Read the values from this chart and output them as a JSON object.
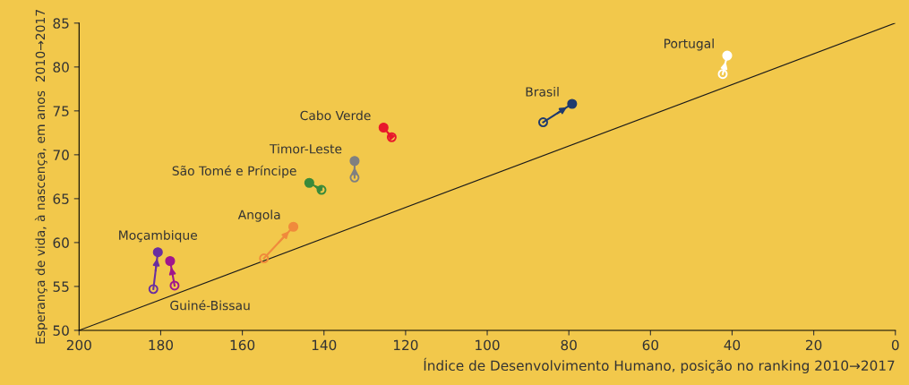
{
  "chart_data": {
    "type": "line",
    "xlabel": "Índice de Desenvolvimento Humano, posição no ranking 2010→2017",
    "ylabel": "Esperança de vida, à nascença, em anos  2010→2017",
    "xlim": [
      200,
      0
    ],
    "xticks": [
      200,
      180,
      160,
      140,
      120,
      100,
      80,
      60,
      40,
      20,
      0
    ],
    "ylim": [
      50,
      85
    ],
    "yticks": [
      50,
      55,
      60,
      65,
      70,
      75,
      80,
      85
    ],
    "marker": "circle",
    "grid": false,
    "legend": false,
    "series": [
      {
        "color": "#1a1a1a",
        "x": [
          200,
          0
        ],
        "values": [
          50,
          85
        ],
        "marker": "none"
      },
      {
        "name": "Portugal",
        "color": "#ffffff",
        "x": [
          42.3,
          41.2
        ],
        "values": [
          79.2,
          81.3
        ]
      },
      {
        "name": "Brasil",
        "color": "#1f3a6e",
        "x": [
          86.3,
          79.2
        ],
        "values": [
          73.7,
          75.8
        ]
      },
      {
        "name": "Cabo Verde",
        "color": "#e8192c",
        "x": [
          123.4,
          125.4
        ],
        "values": [
          72.0,
          73.1
        ]
      },
      {
        "name": "Timor-Leste",
        "color": "#808080",
        "x": [
          132.5,
          132.5
        ],
        "values": [
          67.4,
          69.3
        ]
      },
      {
        "name": "São Tomé e Príncipe",
        "color": "#3a8a3a",
        "x": [
          140.6,
          143.6
        ],
        "values": [
          66.0,
          66.8
        ]
      },
      {
        "name": "Angola",
        "color": "#f08a3c",
        "x": [
          154.7,
          147.5
        ],
        "values": [
          58.2,
          61.8
        ]
      },
      {
        "name": "Moçambique",
        "color": "#6a2fa0",
        "x": [
          181.8,
          180.7
        ],
        "values": [
          54.7,
          58.9
        ]
      },
      {
        "name": "Guiné-Bissau",
        "color": "#a0178c",
        "x": [
          176.6,
          177.7
        ],
        "values": [
          55.1,
          57.9
        ]
      }
    ]
  }
}
